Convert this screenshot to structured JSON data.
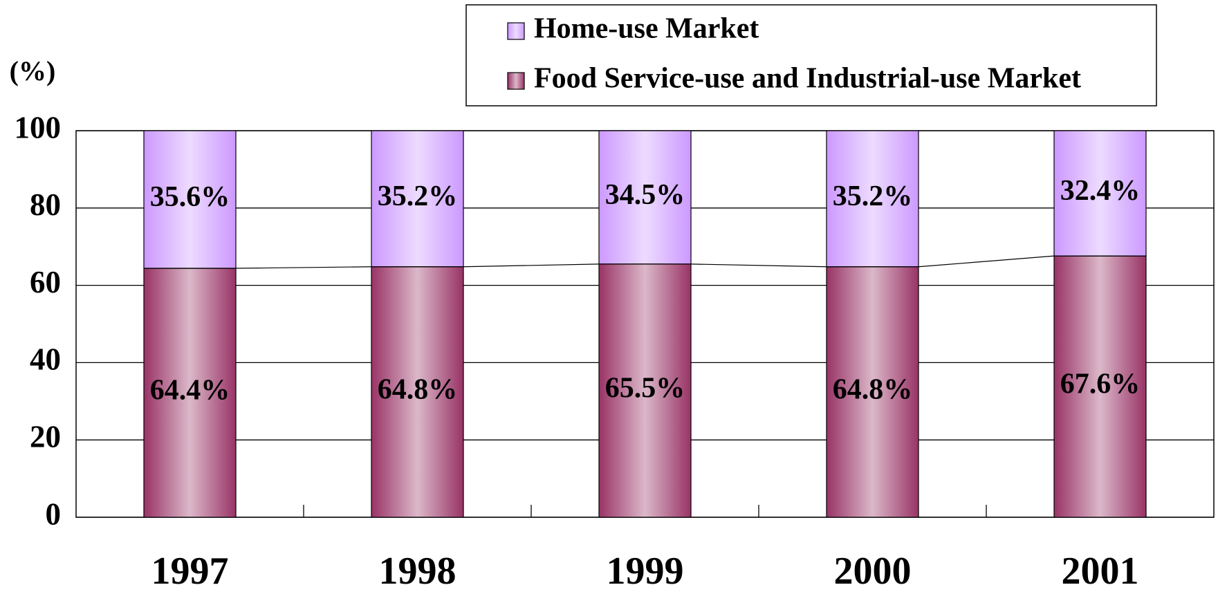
{
  "chart_data": {
    "type": "stacked_bar",
    "y_label": "(%)",
    "categories": [
      "1997",
      "1998",
      "1999",
      "2000",
      "2001"
    ],
    "series": [
      {
        "name": "Home-use Market",
        "color": "#cc99ff",
        "values": [
          35.6,
          35.2,
          34.5,
          35.2,
          32.4
        ],
        "value_labels": [
          "35.6%",
          "35.2%",
          "34.5%",
          "35.2%",
          "32.4%"
        ]
      },
      {
        "name": "Food Service-use and Industrial-use Market",
        "color": "#993366",
        "values": [
          64.4,
          64.8,
          65.5,
          64.8,
          67.6
        ],
        "value_labels": [
          "64.4%",
          "64.8%",
          "65.5%",
          "64.8%",
          "67.6%"
        ]
      }
    ],
    "ylim": [
      0,
      100
    ],
    "yticks": [
      0,
      20,
      40,
      60,
      80,
      100
    ],
    "grid": true,
    "legend": "top"
  }
}
